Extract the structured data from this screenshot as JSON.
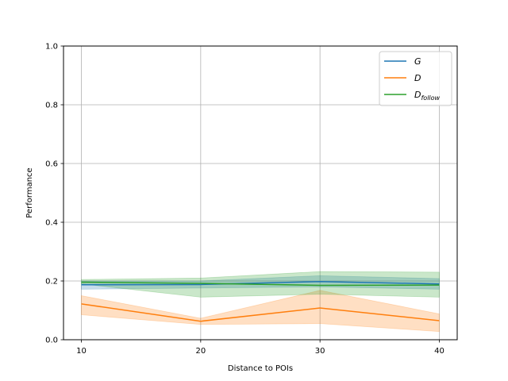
{
  "chart_data": {
    "type": "line",
    "title": "",
    "xlabel": "Distance to POIs",
    "ylabel": "Performance",
    "x": [
      10,
      20,
      30,
      40
    ],
    "xticks": [
      "10",
      "20",
      "30",
      "40"
    ],
    "yticks": [
      "0.0",
      "0.2",
      "0.4",
      "0.6",
      "0.8",
      "1.0"
    ],
    "xlim": [
      8.5,
      41.5
    ],
    "ylim": [
      0,
      1
    ],
    "grid": true,
    "legend_position": "top-right",
    "series": [
      {
        "name": "G",
        "legend_main": "G",
        "legend_sub": "",
        "color": "#1f77b4",
        "values": [
          0.187,
          0.188,
          0.198,
          0.19
        ],
        "lower": [
          0.172,
          0.176,
          0.18,
          0.172
        ],
        "upper": [
          0.2,
          0.2,
          0.218,
          0.208
        ]
      },
      {
        "name": "D",
        "legend_main": "D",
        "legend_sub": "",
        "color": "#ff7f0e",
        "values": [
          0.122,
          0.063,
          0.108,
          0.065
        ],
        "lower": [
          0.085,
          0.052,
          0.055,
          0.028
        ],
        "upper": [
          0.15,
          0.073,
          0.168,
          0.088
        ]
      },
      {
        "name": "D_follow",
        "legend_main": "D",
        "legend_sub": "follow",
        "color": "#2ca02c",
        "values": [
          0.196,
          0.192,
          0.185,
          0.186
        ],
        "lower": [
          0.19,
          0.145,
          0.155,
          0.145
        ],
        "upper": [
          0.205,
          0.21,
          0.232,
          0.23
        ]
      }
    ]
  }
}
